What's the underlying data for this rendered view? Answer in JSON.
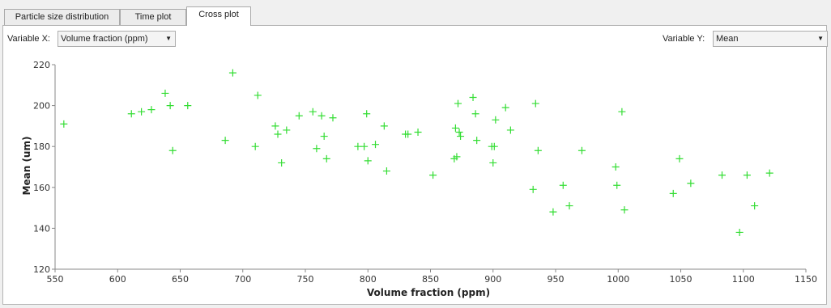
{
  "tabs": [
    {
      "label": "Particle size distribution",
      "active": false
    },
    {
      "label": "Time plot",
      "active": false
    },
    {
      "label": "Cross plot",
      "active": true
    }
  ],
  "controls": {
    "variable_x_label": "Variable X:",
    "variable_x_value": "Volume fraction (ppm)",
    "variable_y_label": "Variable Y:",
    "variable_y_value": "Mean"
  },
  "colors": {
    "marker": "#33dd33",
    "axis": "#888888"
  },
  "chart_data": {
    "type": "scatter",
    "xlabel": "Volume fraction (ppm)",
    "ylabel": "Mean (um)",
    "xlim": [
      550,
      1150
    ],
    "ylim": [
      120,
      220
    ],
    "x_ticks": [
      550,
      600,
      650,
      700,
      750,
      800,
      850,
      900,
      950,
      1000,
      1050,
      1100,
      1150
    ],
    "y_ticks": [
      120,
      140,
      160,
      180,
      200,
      220
    ],
    "grid": false,
    "points": [
      [
        557,
        191
      ],
      [
        611,
        196
      ],
      [
        619,
        197
      ],
      [
        627,
        198
      ],
      [
        638,
        206
      ],
      [
        642,
        200
      ],
      [
        644,
        178
      ],
      [
        656,
        200
      ],
      [
        686,
        183
      ],
      [
        692,
        216
      ],
      [
        710,
        180
      ],
      [
        712,
        205
      ],
      [
        726,
        190
      ],
      [
        728,
        186
      ],
      [
        731,
        172
      ],
      [
        735,
        188
      ],
      [
        745,
        195
      ],
      [
        756,
        197
      ],
      [
        759,
        179
      ],
      [
        763,
        195
      ],
      [
        765,
        185
      ],
      [
        767,
        174
      ],
      [
        772,
        194
      ],
      [
        792,
        180
      ],
      [
        797,
        180
      ],
      [
        799,
        196
      ],
      [
        800,
        173
      ],
      [
        806,
        181
      ],
      [
        813,
        190
      ],
      [
        815,
        168
      ],
      [
        830,
        186
      ],
      [
        832,
        186
      ],
      [
        840,
        187
      ],
      [
        852,
        166
      ],
      [
        869,
        174
      ],
      [
        870,
        189
      ],
      [
        871,
        175
      ],
      [
        872,
        201
      ],
      [
        873,
        187
      ],
      [
        874,
        185
      ],
      [
        884,
        204
      ],
      [
        886,
        196
      ],
      [
        887,
        183
      ],
      [
        899,
        180
      ],
      [
        900,
        172
      ],
      [
        901,
        180
      ],
      [
        902,
        193
      ],
      [
        910,
        199
      ],
      [
        914,
        188
      ],
      [
        932,
        159
      ],
      [
        934,
        201
      ],
      [
        936,
        178
      ],
      [
        948,
        148
      ],
      [
        956,
        161
      ],
      [
        961,
        151
      ],
      [
        971,
        178
      ],
      [
        998,
        170
      ],
      [
        999,
        161
      ],
      [
        1003,
        197
      ],
      [
        1005,
        149
      ],
      [
        1044,
        157
      ],
      [
        1049,
        174
      ],
      [
        1058,
        162
      ],
      [
        1083,
        166
      ],
      [
        1097,
        138
      ],
      [
        1103,
        166
      ],
      [
        1109,
        151
      ],
      [
        1121,
        167
      ]
    ]
  }
}
